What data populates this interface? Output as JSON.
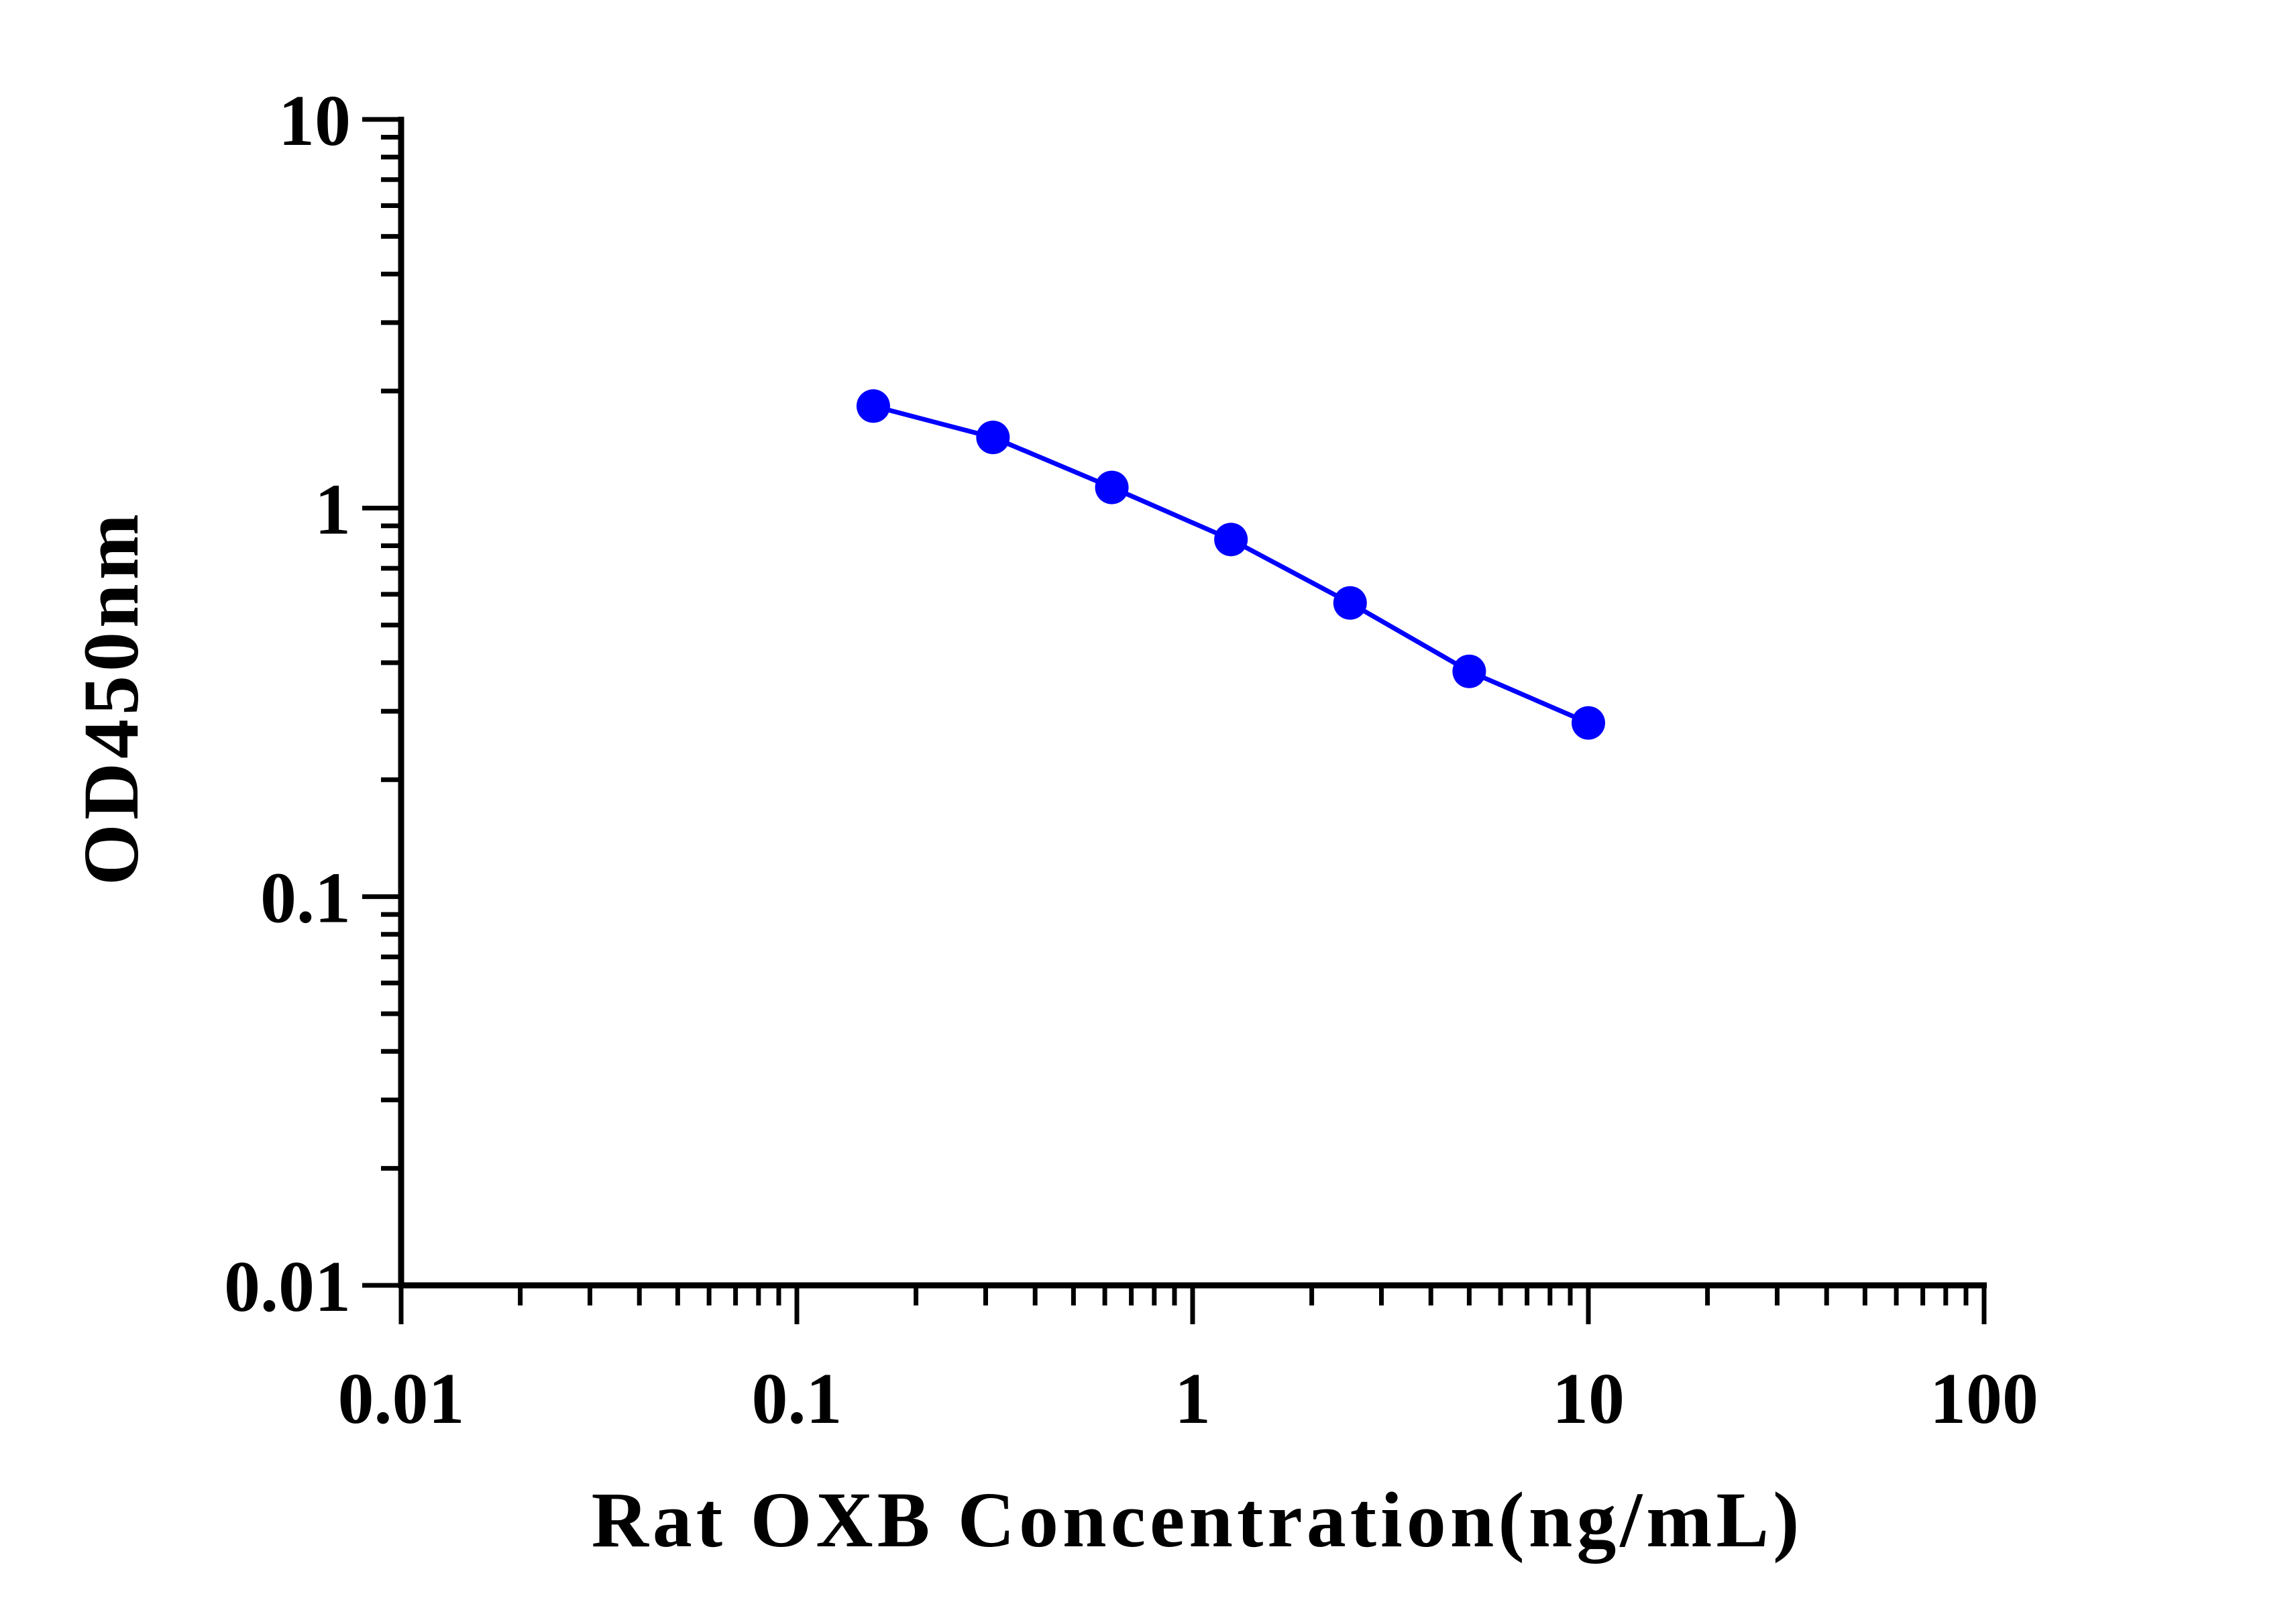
{
  "chart_data": {
    "type": "line",
    "title": "",
    "xlabel": "Rat OXB Concentration(ng/mL)",
    "ylabel": "OD450nm",
    "x_scale": "log",
    "y_scale": "log",
    "xlim": [
      0.01,
      100
    ],
    "ylim": [
      0.01,
      10
    ],
    "x_ticks": [
      "0.01",
      "0.1",
      "1",
      "10",
      "100"
    ],
    "y_ticks": [
      "0.01",
      "0.1",
      "1",
      "10"
    ],
    "grid": false,
    "legend": "none",
    "series": [
      {
        "color": "#0000ff",
        "x": [
          0.156,
          0.313,
          0.625,
          1.25,
          2.5,
          5,
          10
        ],
        "y": [
          1.83,
          1.52,
          1.13,
          0.83,
          0.57,
          0.38,
          0.28
        ]
      }
    ]
  }
}
